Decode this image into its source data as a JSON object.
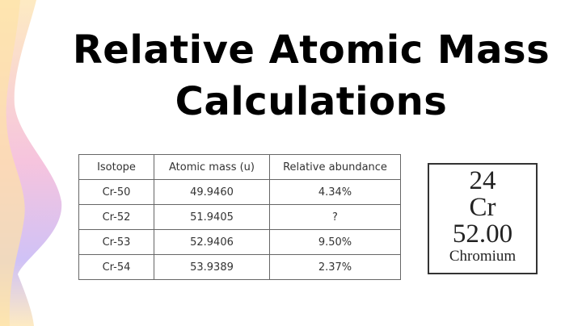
{
  "title": {
    "line1": "Relative Atomic Mass",
    "line2": "Calculations"
  },
  "table": {
    "headers": [
      "Isotope",
      "Atomic mass (u)",
      "Relative abundance"
    ],
    "rows": [
      [
        "Cr-50",
        "49.9460",
        "4.34%"
      ],
      [
        "Cr-52",
        "51.9405",
        "?"
      ],
      [
        "Cr-53",
        "52.9406",
        "9.50%"
      ],
      [
        "Cr-54",
        "53.9389",
        "2.37%"
      ]
    ]
  },
  "element": {
    "atomic_number": "24",
    "symbol": "Cr",
    "atomic_mass": "52.00",
    "name": "Chromium"
  },
  "colors": {
    "wave_yellow": "#fde3a7",
    "wave_pink": "#f2b3dd",
    "wave_purple": "#c3b5f5"
  }
}
